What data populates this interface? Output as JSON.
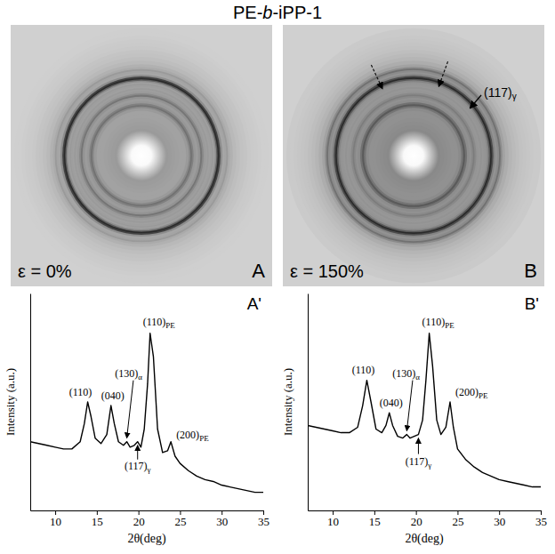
{
  "title": "PE-b-iPP-1",
  "chart_data": [
    {
      "type": "image",
      "panel": "A",
      "label": "ε = 0%"
    },
    {
      "type": "image",
      "panel": "B",
      "label": "ε = 150%",
      "annotations": [
        {
          "text": "(117)γ"
        }
      ]
    },
    {
      "type": "line",
      "panel": "A'",
      "color": "#000000",
      "x_label": "2θ(deg)",
      "y_label": "Intensity (a.u.)",
      "xlim": [
        7,
        35
      ],
      "xticks": [
        10,
        15,
        20,
        25,
        30,
        35
      ],
      "ylim": [
        0,
        120
      ],
      "tick_labels": "x",
      "x": [
        7,
        8,
        9,
        10,
        11,
        12,
        13,
        13.5,
        13.9,
        14.3,
        14.8,
        15.5,
        16.2,
        16.7,
        17.1,
        17.6,
        18.2,
        18.6,
        19.0,
        19.5,
        19.9,
        20.3,
        20.7,
        21.1,
        21.4,
        21.8,
        22.3,
        22.9,
        23.5,
        23.9,
        24.4,
        25,
        26,
        27,
        28,
        29,
        30,
        31,
        32,
        33,
        34,
        35
      ],
      "values": [
        38,
        37,
        36,
        35,
        34,
        34,
        38,
        48,
        60,
        52,
        40,
        37,
        42,
        58,
        48,
        38,
        36,
        38,
        35,
        36,
        38,
        35,
        45,
        70,
        98,
        85,
        45,
        32,
        33,
        38,
        30,
        26,
        22,
        19,
        17,
        16,
        14,
        13,
        12,
        11,
        10,
        10
      ],
      "annotations": [
        {
          "text": "(110)",
          "x": 13.9
        },
        {
          "text": "(040)",
          "x": 16.7
        },
        {
          "text": "(130)α",
          "x": 18.6
        },
        {
          "text": "(117)γ",
          "x": 19.9
        },
        {
          "text": "(110)PE",
          "x": 21.4
        },
        {
          "text": "(200)PE",
          "x": 23.9
        }
      ]
    },
    {
      "type": "line",
      "panel": "B'",
      "color": "#000000",
      "x_label": "2θ(deg)",
      "y_label": "Intensity (a.u.)",
      "xlim": [
        7,
        35
      ],
      "xticks": [
        10,
        15,
        20,
        25,
        30,
        35
      ],
      "ylim": [
        0,
        120
      ],
      "tick_labels": "x",
      "x": [
        7,
        8,
        9,
        10,
        11,
        12,
        13,
        13.6,
        14.1,
        14.6,
        15.2,
        15.9,
        16.4,
        16.8,
        17.2,
        17.8,
        18.4,
        18.9,
        19.3,
        19.8,
        20.3,
        20.8,
        21.2,
        21.6,
        22.0,
        22.5,
        23.0,
        23.6,
        24.1,
        24.5,
        25,
        26,
        27,
        28,
        29,
        30,
        31,
        32,
        33,
        34,
        35
      ],
      "values": [
        47,
        46,
        45,
        44,
        43,
        43,
        46,
        58,
        72,
        60,
        45,
        43,
        47,
        54,
        47,
        41,
        40,
        42,
        40,
        41,
        42,
        50,
        72,
        98,
        80,
        50,
        42,
        46,
        60,
        46,
        34,
        28,
        24,
        21,
        19,
        17,
        16,
        15,
        14,
        13,
        13
      ],
      "annotations": [
        {
          "text": "(110)",
          "x": 14.1
        },
        {
          "text": "(040)",
          "x": 16.8
        },
        {
          "text": "(130)α",
          "x": 18.9
        },
        {
          "text": "(117)γ",
          "x": 20.3
        },
        {
          "text": "(110)PE",
          "x": 21.6
        },
        {
          "text": "(200)PE",
          "x": 24.1
        }
      ]
    }
  ]
}
